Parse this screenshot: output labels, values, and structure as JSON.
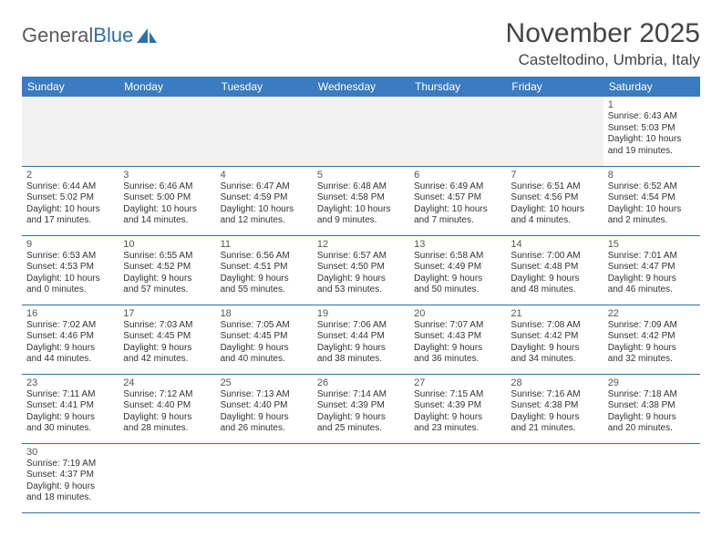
{
  "logo": {
    "text_general": "General",
    "text_blue": "Blue",
    "sail_color": "#2f6fab"
  },
  "title": "November 2025",
  "location": "Casteltodino, Umbria, Italy",
  "colors": {
    "header_bg": "#3b7bbf",
    "header_text": "#ffffff",
    "row_border": "#2f6fab",
    "empty_bg": "#f2f2f2",
    "page_bg": "#ffffff",
    "text": "#333333"
  },
  "day_headers": [
    "Sunday",
    "Monday",
    "Tuesday",
    "Wednesday",
    "Thursday",
    "Friday",
    "Saturday"
  ],
  "weeks": [
    [
      null,
      null,
      null,
      null,
      null,
      null,
      {
        "n": "1",
        "sunrise": "Sunrise: 6:43 AM",
        "sunset": "Sunset: 5:03 PM",
        "day1": "Daylight: 10 hours",
        "day2": "and 19 minutes."
      }
    ],
    [
      {
        "n": "2",
        "sunrise": "Sunrise: 6:44 AM",
        "sunset": "Sunset: 5:02 PM",
        "day1": "Daylight: 10 hours",
        "day2": "and 17 minutes."
      },
      {
        "n": "3",
        "sunrise": "Sunrise: 6:46 AM",
        "sunset": "Sunset: 5:00 PM",
        "day1": "Daylight: 10 hours",
        "day2": "and 14 minutes."
      },
      {
        "n": "4",
        "sunrise": "Sunrise: 6:47 AM",
        "sunset": "Sunset: 4:59 PM",
        "day1": "Daylight: 10 hours",
        "day2": "and 12 minutes."
      },
      {
        "n": "5",
        "sunrise": "Sunrise: 6:48 AM",
        "sunset": "Sunset: 4:58 PM",
        "day1": "Daylight: 10 hours",
        "day2": "and 9 minutes."
      },
      {
        "n": "6",
        "sunrise": "Sunrise: 6:49 AM",
        "sunset": "Sunset: 4:57 PM",
        "day1": "Daylight: 10 hours",
        "day2": "and 7 minutes."
      },
      {
        "n": "7",
        "sunrise": "Sunrise: 6:51 AM",
        "sunset": "Sunset: 4:56 PM",
        "day1": "Daylight: 10 hours",
        "day2": "and 4 minutes."
      },
      {
        "n": "8",
        "sunrise": "Sunrise: 6:52 AM",
        "sunset": "Sunset: 4:54 PM",
        "day1": "Daylight: 10 hours",
        "day2": "and 2 minutes."
      }
    ],
    [
      {
        "n": "9",
        "sunrise": "Sunrise: 6:53 AM",
        "sunset": "Sunset: 4:53 PM",
        "day1": "Daylight: 10 hours",
        "day2": "and 0 minutes."
      },
      {
        "n": "10",
        "sunrise": "Sunrise: 6:55 AM",
        "sunset": "Sunset: 4:52 PM",
        "day1": "Daylight: 9 hours",
        "day2": "and 57 minutes."
      },
      {
        "n": "11",
        "sunrise": "Sunrise: 6:56 AM",
        "sunset": "Sunset: 4:51 PM",
        "day1": "Daylight: 9 hours",
        "day2": "and 55 minutes."
      },
      {
        "n": "12",
        "sunrise": "Sunrise: 6:57 AM",
        "sunset": "Sunset: 4:50 PM",
        "day1": "Daylight: 9 hours",
        "day2": "and 53 minutes."
      },
      {
        "n": "13",
        "sunrise": "Sunrise: 6:58 AM",
        "sunset": "Sunset: 4:49 PM",
        "day1": "Daylight: 9 hours",
        "day2": "and 50 minutes."
      },
      {
        "n": "14",
        "sunrise": "Sunrise: 7:00 AM",
        "sunset": "Sunset: 4:48 PM",
        "day1": "Daylight: 9 hours",
        "day2": "and 48 minutes."
      },
      {
        "n": "15",
        "sunrise": "Sunrise: 7:01 AM",
        "sunset": "Sunset: 4:47 PM",
        "day1": "Daylight: 9 hours",
        "day2": "and 46 minutes."
      }
    ],
    [
      {
        "n": "16",
        "sunrise": "Sunrise: 7:02 AM",
        "sunset": "Sunset: 4:46 PM",
        "day1": "Daylight: 9 hours",
        "day2": "and 44 minutes."
      },
      {
        "n": "17",
        "sunrise": "Sunrise: 7:03 AM",
        "sunset": "Sunset: 4:45 PM",
        "day1": "Daylight: 9 hours",
        "day2": "and 42 minutes."
      },
      {
        "n": "18",
        "sunrise": "Sunrise: 7:05 AM",
        "sunset": "Sunset: 4:45 PM",
        "day1": "Daylight: 9 hours",
        "day2": "and 40 minutes."
      },
      {
        "n": "19",
        "sunrise": "Sunrise: 7:06 AM",
        "sunset": "Sunset: 4:44 PM",
        "day1": "Daylight: 9 hours",
        "day2": "and 38 minutes."
      },
      {
        "n": "20",
        "sunrise": "Sunrise: 7:07 AM",
        "sunset": "Sunset: 4:43 PM",
        "day1": "Daylight: 9 hours",
        "day2": "and 36 minutes."
      },
      {
        "n": "21",
        "sunrise": "Sunrise: 7:08 AM",
        "sunset": "Sunset: 4:42 PM",
        "day1": "Daylight: 9 hours",
        "day2": "and 34 minutes."
      },
      {
        "n": "22",
        "sunrise": "Sunrise: 7:09 AM",
        "sunset": "Sunset: 4:42 PM",
        "day1": "Daylight: 9 hours",
        "day2": "and 32 minutes."
      }
    ],
    [
      {
        "n": "23",
        "sunrise": "Sunrise: 7:11 AM",
        "sunset": "Sunset: 4:41 PM",
        "day1": "Daylight: 9 hours",
        "day2": "and 30 minutes."
      },
      {
        "n": "24",
        "sunrise": "Sunrise: 7:12 AM",
        "sunset": "Sunset: 4:40 PM",
        "day1": "Daylight: 9 hours",
        "day2": "and 28 minutes."
      },
      {
        "n": "25",
        "sunrise": "Sunrise: 7:13 AM",
        "sunset": "Sunset: 4:40 PM",
        "day1": "Daylight: 9 hours",
        "day2": "and 26 minutes."
      },
      {
        "n": "26",
        "sunrise": "Sunrise: 7:14 AM",
        "sunset": "Sunset: 4:39 PM",
        "day1": "Daylight: 9 hours",
        "day2": "and 25 minutes."
      },
      {
        "n": "27",
        "sunrise": "Sunrise: 7:15 AM",
        "sunset": "Sunset: 4:39 PM",
        "day1": "Daylight: 9 hours",
        "day2": "and 23 minutes."
      },
      {
        "n": "28",
        "sunrise": "Sunrise: 7:16 AM",
        "sunset": "Sunset: 4:38 PM",
        "day1": "Daylight: 9 hours",
        "day2": "and 21 minutes."
      },
      {
        "n": "29",
        "sunrise": "Sunrise: 7:18 AM",
        "sunset": "Sunset: 4:38 PM",
        "day1": "Daylight: 9 hours",
        "day2": "and 20 minutes."
      }
    ],
    [
      {
        "n": "30",
        "sunrise": "Sunrise: 7:19 AM",
        "sunset": "Sunset: 4:37 PM",
        "day1": "Daylight: 9 hours",
        "day2": "and 18 minutes."
      },
      null,
      null,
      null,
      null,
      null,
      null
    ]
  ]
}
